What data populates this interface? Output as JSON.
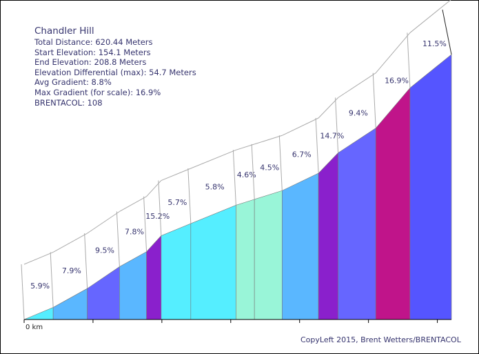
{
  "info": {
    "title": "Chandler Hill",
    "total_distance": "Total Distance: 620.44 Meters",
    "start_elevation": "Start Elevation: 154.1 Meters",
    "end_elevation": "End Elevation: 208.8 Meters",
    "elevation_differential": "Elevation Differential (max): 54.7 Meters",
    "avg_gradient": "Avg Gradient: 8.8%",
    "max_gradient": "Max Gradient (for scale): 16.9%",
    "brentacol": "BRENTACOL: 108"
  },
  "credit": "CopyLeft 2015, Brent Wetters/BRENTACOL",
  "chart_data": {
    "type": "area",
    "title": "Chandler Hill",
    "x_unit": "meters",
    "y_unit": "meters",
    "xlabel": "",
    "ylabel": "",
    "x_start_label": "0 km",
    "ylim": [
      154.1,
      208.8
    ],
    "xlim": [
      0,
      620.44
    ],
    "grid": false,
    "legend": "none",
    "segments": [
      {
        "start_m": 0,
        "end_m": 42.2,
        "gradient_label": "5.9%",
        "color": "#55eeff"
      },
      {
        "start_m": 42.2,
        "end_m": 91.7,
        "gradient_label": "7.9%",
        "color": "#5ab7ff"
      },
      {
        "start_m": 91.7,
        "end_m": 138.5,
        "gradient_label": "9.5%",
        "color": "#6666ff"
      },
      {
        "start_m": 138.5,
        "end_m": 177.7,
        "gradient_label": "7.8%",
        "color": "#5ab7ff"
      },
      {
        "start_m": 177.7,
        "end_m": 199.0,
        "gradient_label": "15.2%",
        "color": "#8a20cc"
      },
      {
        "start_m": 199.0,
        "end_m": 242.0,
        "gradient_label": "5.7%",
        "color": "#55eeff"
      },
      {
        "start_m": 242.0,
        "end_m": 307.6,
        "gradient_label": "5.8%",
        "color": "#55eeff"
      },
      {
        "start_m": 307.6,
        "end_m": 334.4,
        "gradient_label": "4.6%",
        "color": "#99f5d8"
      },
      {
        "start_m": 334.4,
        "end_m": 374.6,
        "gradient_label": "4.5%",
        "color": "#99f5d8"
      },
      {
        "start_m": 374.6,
        "end_m": 427.4,
        "gradient_label": "6.7%",
        "color": "#5ab7ff"
      },
      {
        "start_m": 427.4,
        "end_m": 455.9,
        "gradient_label": "14.7%",
        "color": "#8a20cc"
      },
      {
        "start_m": 455.9,
        "end_m": 510.6,
        "gradient_label": "9.4%",
        "color": "#6666ff"
      },
      {
        "start_m": 510.6,
        "end_m": 560.3,
        "gradient_label": "16.9%",
        "color": "#c0148a"
      },
      {
        "start_m": 560.3,
        "end_m": 620.44,
        "gradient_label": "11.5%",
        "color": "#5555ff"
      }
    ],
    "elevations_m": [
      154.1,
      156.6,
      160.5,
      165.0,
      168.1,
      171.4,
      173.9,
      177.7,
      178.9,
      180.7,
      184.3,
      188.5,
      193.6,
      201.9,
      208.8
    ]
  }
}
